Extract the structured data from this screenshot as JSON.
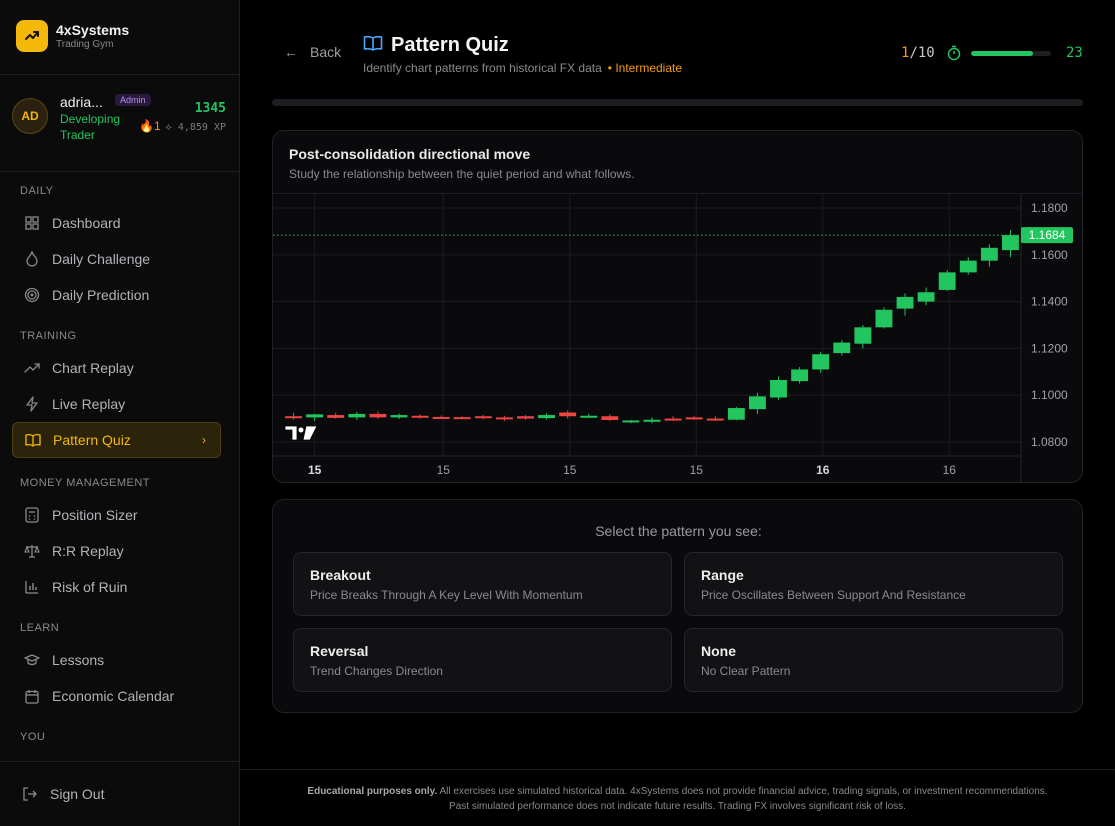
{
  "brand": {
    "name": "4xSystems",
    "subtitle": "Trading Gym"
  },
  "user": {
    "initials": "AD",
    "name": "adria...",
    "role_badge": "Admin",
    "rank": "Developing Trader",
    "points": "1345",
    "streak": "1",
    "xp": "4,859 XP"
  },
  "sidebar": {
    "sections": {
      "daily": "DAILY",
      "training": "TRAINING",
      "money": "MONEY MANAGEMENT",
      "learn": "LEARN",
      "you": "YOU"
    },
    "items": {
      "dashboard": "Dashboard",
      "daily_challenge": "Daily Challenge",
      "daily_prediction": "Daily Prediction",
      "chart_replay": "Chart Replay",
      "live_replay": "Live Replay",
      "pattern_quiz": "Pattern Quiz",
      "position_sizer": "Position Sizer",
      "rr_replay": "R:R Replay",
      "risk_of_ruin": "Risk of Ruin",
      "lessons": "Lessons",
      "economic_calendar": "Economic Calendar",
      "sign_out": "Sign Out"
    }
  },
  "header": {
    "back_label": "Back",
    "title": "Pattern Quiz",
    "subtitle": "Identify chart patterns from historical FX data",
    "level": "• Intermediate",
    "progress_current": "1",
    "progress_total": "/10",
    "timer_seconds": "23",
    "timer_fraction": 0.77
  },
  "chart": {
    "title": "Post-consolidation directional move",
    "subtitle": "Study the relationship between the quiet period and what follows.",
    "current_price_label": "1.1684"
  },
  "chart_data": {
    "type": "candlestick",
    "y_ticks": [
      "1.1800",
      "1.1600",
      "1.1400",
      "1.1200",
      "1.1000",
      "1.0800"
    ],
    "x_ticks": [
      "15",
      "15",
      "15",
      "15",
      "16",
      "16"
    ],
    "x_ticks_bold": [
      true,
      false,
      false,
      false,
      true,
      false
    ],
    "ylim": [
      1.074,
      1.186
    ],
    "current_price": 1.1684,
    "candles": [
      {
        "o": 1.091,
        "h": 1.0925,
        "l": 1.0895,
        "c": 1.0908
      },
      {
        "o": 1.0905,
        "h": 1.092,
        "l": 1.089,
        "c": 1.0918
      },
      {
        "o": 1.0915,
        "h": 1.0925,
        "l": 1.09,
        "c": 1.0903
      },
      {
        "o": 1.0905,
        "h": 1.0928,
        "l": 1.0895,
        "c": 1.092
      },
      {
        "o": 1.092,
        "h": 1.093,
        "l": 1.09,
        "c": 1.0905
      },
      {
        "o": 1.0905,
        "h": 1.0922,
        "l": 1.0898,
        "c": 1.0915
      },
      {
        "o": 1.0912,
        "h": 1.0918,
        "l": 1.09,
        "c": 1.0906
      },
      {
        "o": 1.0907,
        "h": 1.0913,
        "l": 1.0901,
        "c": 1.0905
      },
      {
        "o": 1.0906,
        "h": 1.091,
        "l": 1.09,
        "c": 1.0903
      },
      {
        "o": 1.091,
        "h": 1.0915,
        "l": 1.0897,
        "c": 1.0902
      },
      {
        "o": 1.0905,
        "h": 1.0912,
        "l": 1.089,
        "c": 1.0903
      },
      {
        "o": 1.091,
        "h": 1.0915,
        "l": 1.0895,
        "c": 1.09
      },
      {
        "o": 1.0902,
        "h": 1.0923,
        "l": 1.0895,
        "c": 1.0915
      },
      {
        "o": 1.0926,
        "h": 1.0935,
        "l": 1.09,
        "c": 1.091
      },
      {
        "o": 1.091,
        "h": 1.092,
        "l": 1.0905,
        "c": 1.0912
      },
      {
        "o": 1.091,
        "h": 1.0918,
        "l": 1.089,
        "c": 1.0894
      },
      {
        "o": 1.0885,
        "h": 1.0895,
        "l": 1.088,
        "c": 1.0892
      },
      {
        "o": 1.0888,
        "h": 1.0905,
        "l": 1.088,
        "c": 1.0895
      },
      {
        "o": 1.09,
        "h": 1.091,
        "l": 1.089,
        "c": 1.0893
      },
      {
        "o": 1.0905,
        "h": 1.091,
        "l": 1.0895,
        "c": 1.09
      },
      {
        "o": 1.09,
        "h": 1.091,
        "l": 1.089,
        "c": 1.0895
      },
      {
        "o": 1.0895,
        "h": 1.095,
        "l": 1.0893,
        "c": 1.0945
      },
      {
        "o": 1.094,
        "h": 1.101,
        "l": 1.092,
        "c": 1.0995
      },
      {
        "o": 1.099,
        "h": 1.108,
        "l": 1.098,
        "c": 1.1065
      },
      {
        "o": 1.106,
        "h": 1.112,
        "l": 1.105,
        "c": 1.111
      },
      {
        "o": 1.111,
        "h": 1.1185,
        "l": 1.1095,
        "c": 1.1175
      },
      {
        "o": 1.118,
        "h": 1.1235,
        "l": 1.117,
        "c": 1.1225
      },
      {
        "o": 1.122,
        "h": 1.13,
        "l": 1.12,
        "c": 1.129
      },
      {
        "o": 1.129,
        "h": 1.1375,
        "l": 1.1285,
        "c": 1.1365
      },
      {
        "o": 1.137,
        "h": 1.1435,
        "l": 1.134,
        "c": 1.142
      },
      {
        "o": 1.14,
        "h": 1.146,
        "l": 1.1385,
        "c": 1.144
      },
      {
        "o": 1.145,
        "h": 1.1535,
        "l": 1.1445,
        "c": 1.1525
      },
      {
        "o": 1.1525,
        "h": 1.159,
        "l": 1.1515,
        "c": 1.1575
      },
      {
        "o": 1.1575,
        "h": 1.1645,
        "l": 1.155,
        "c": 1.163
      },
      {
        "o": 1.162,
        "h": 1.1705,
        "l": 1.159,
        "c": 1.1684
      }
    ]
  },
  "quiz": {
    "prompt": "Select the pattern you see:",
    "options": [
      {
        "name": "Breakout",
        "desc": "Price Breaks Through A Key Level With Momentum"
      },
      {
        "name": "Range",
        "desc": "Price Oscillates Between Support And Resistance"
      },
      {
        "name": "Reversal",
        "desc": "Trend Changes Direction"
      },
      {
        "name": "None",
        "desc": "No Clear Pattern"
      }
    ]
  },
  "footer": {
    "bold": "Educational purposes only.",
    "text": " All exercises use simulated historical data. 4xSystems does not provide financial advice, trading signals, or investment recommendations. Past simulated performance does not indicate future results. Trading FX involves significant risk of loss."
  },
  "colors": {
    "accent": "#f5b80a",
    "up": "#22c55e",
    "down": "#ef4444",
    "background": "#000000"
  }
}
